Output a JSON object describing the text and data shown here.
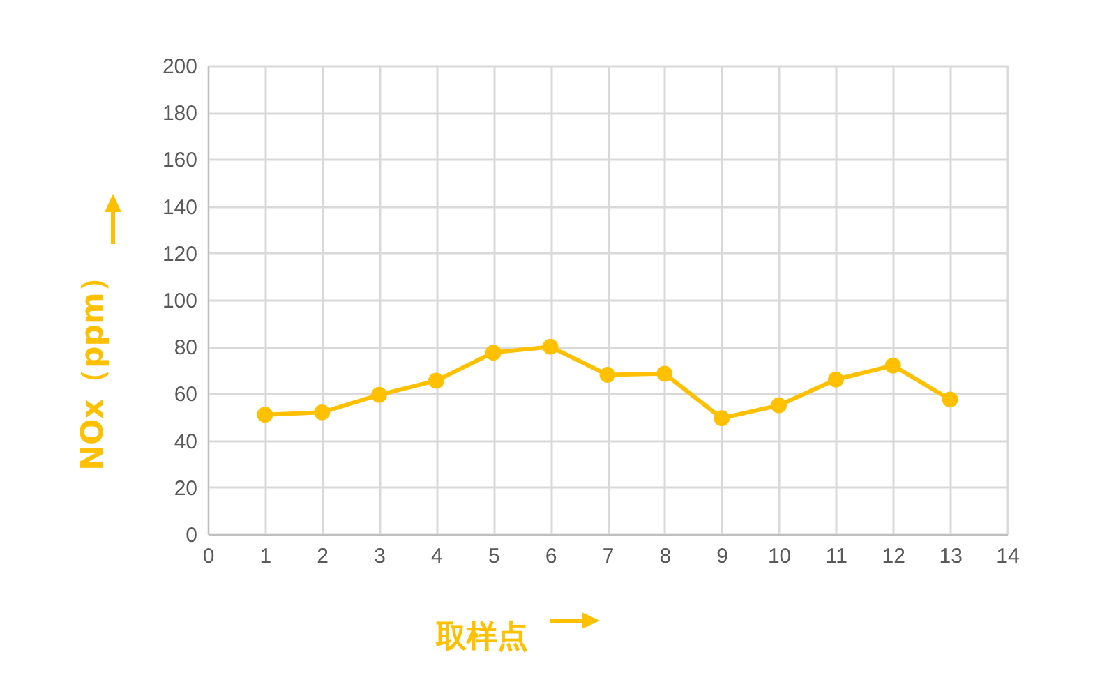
{
  "chart_data": {
    "type": "line",
    "xlabel": "取样点",
    "ylabel": "NOx（ppm）",
    "x": [
      1,
      2,
      3,
      4,
      5,
      6,
      7,
      8,
      9,
      10,
      11,
      12,
      13
    ],
    "series": [
      {
        "color": "#ffc000",
        "values": [
          51,
          52,
          59.5,
          65.5,
          77.5,
          80,
          68,
          68.5,
          49.5,
          55,
          66,
          72,
          57.5
        ]
      }
    ],
    "xlim": [
      0,
      14
    ],
    "xticks": [
      0,
      1,
      2,
      3,
      4,
      5,
      6,
      7,
      8,
      9,
      10,
      11,
      12,
      13,
      14
    ],
    "ylim": [
      0,
      200
    ],
    "yticks": [
      0,
      20,
      40,
      60,
      80,
      100,
      120,
      140,
      160,
      180,
      200
    ],
    "grid": true,
    "marker": "circle",
    "line_style": "solid"
  }
}
